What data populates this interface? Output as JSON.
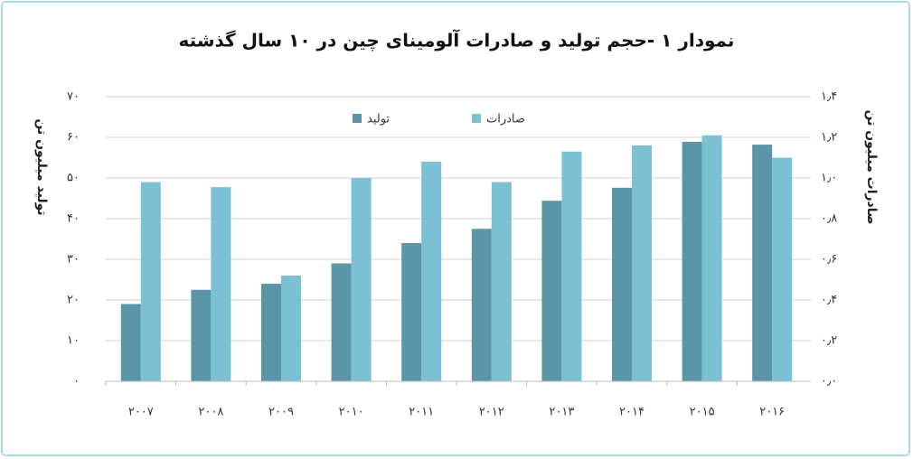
{
  "chart_data": {
    "type": "bar",
    "title": "نمودار ۱ -حجم تولید و صادرات آلومینای چین در ۱۰ سال گذشته",
    "y_label": "تولید میلیون تن",
    "y2_label": "صادرات میلیون تن",
    "categories": [
      "۲۰۰۷",
      "۲۰۰۸",
      "۲۰۰۹",
      "۲۰۱۰",
      "۲۰۱۱",
      "۲۰۱۲",
      "۲۰۱۳",
      "۲۰۱۴",
      "۲۰۱۵",
      "۲۰۱۶"
    ],
    "series": [
      {
        "name": "تولید",
        "color": "#5b96a8",
        "values": [
          19,
          22.5,
          24,
          29,
          34,
          37.5,
          44.4,
          47.6,
          58.9,
          58.2
        ]
      },
      {
        "name": "صادرات",
        "color": "#7cc0d3",
        "axis": "y2",
        "values": [
          0.98,
          0.955,
          0.52,
          1.0,
          1.08,
          0.98,
          1.13,
          1.16,
          1.21,
          1.1
        ]
      }
    ],
    "ylim": [
      0,
      70
    ],
    "yticks": [
      {
        "value": 0,
        "label": "۰"
      },
      {
        "value": 10,
        "label": "۱۰"
      },
      {
        "value": 20,
        "label": "۲۰"
      },
      {
        "value": 30,
        "label": "۳۰"
      },
      {
        "value": 40,
        "label": "۴۰"
      },
      {
        "value": 50,
        "label": "۵۰"
      },
      {
        "value": 60,
        "label": "۶۰"
      },
      {
        "value": 70,
        "label": "۷۰"
      }
    ],
    "y2lim": [
      0,
      1.4
    ],
    "y2ticks": [
      {
        "value": 0,
        "label": "۰٫۰"
      },
      {
        "value": 0.2,
        "label": "۰٫۲"
      },
      {
        "value": 0.4,
        "label": "۰٫۴"
      },
      {
        "value": 0.6,
        "label": "۰٫۶"
      },
      {
        "value": 0.8,
        "label": "۰٫۸"
      },
      {
        "value": 1.0,
        "label": "۱٫۰"
      },
      {
        "value": 1.2,
        "label": "۱٫۲"
      },
      {
        "value": 1.4,
        "label": "۱٫۴"
      }
    ],
    "grid": true
  }
}
